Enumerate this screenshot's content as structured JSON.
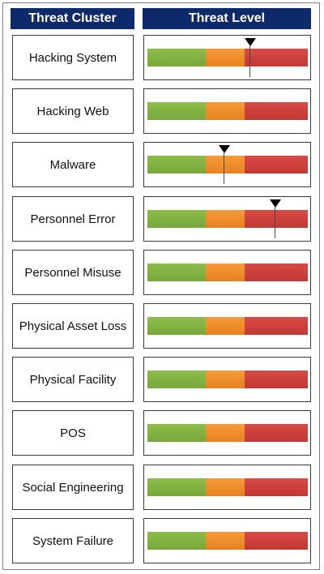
{
  "chart_data": {
    "type": "table",
    "headers": {
      "cluster": "Threat Cluster",
      "level": "Threat Level"
    },
    "scale": {
      "min": 0,
      "max": 1,
      "bands": [
        {
          "color": "#7fb241",
          "from": 0,
          "to": 0.36
        },
        {
          "color": "#f08a25",
          "from": 0.36,
          "to": 0.6
        },
        {
          "color": "#c9403b",
          "from": 0.6,
          "to": 1
        }
      ]
    },
    "rows": [
      {
        "label": "Hacking System",
        "level": 0.64
      },
      {
        "label": "Hacking Web",
        "level": null
      },
      {
        "label": "Malware",
        "level": 0.48
      },
      {
        "label": "Personnel Error",
        "level": 0.8
      },
      {
        "label": "Personnel Misuse",
        "level": null
      },
      {
        "label": "Physical Asset Loss",
        "level": null
      },
      {
        "label": "Physical Facility",
        "level": null
      },
      {
        "label": "POS",
        "level": null
      },
      {
        "label": "Social Engineering",
        "level": null
      },
      {
        "label": "System Failure",
        "level": null
      }
    ]
  }
}
